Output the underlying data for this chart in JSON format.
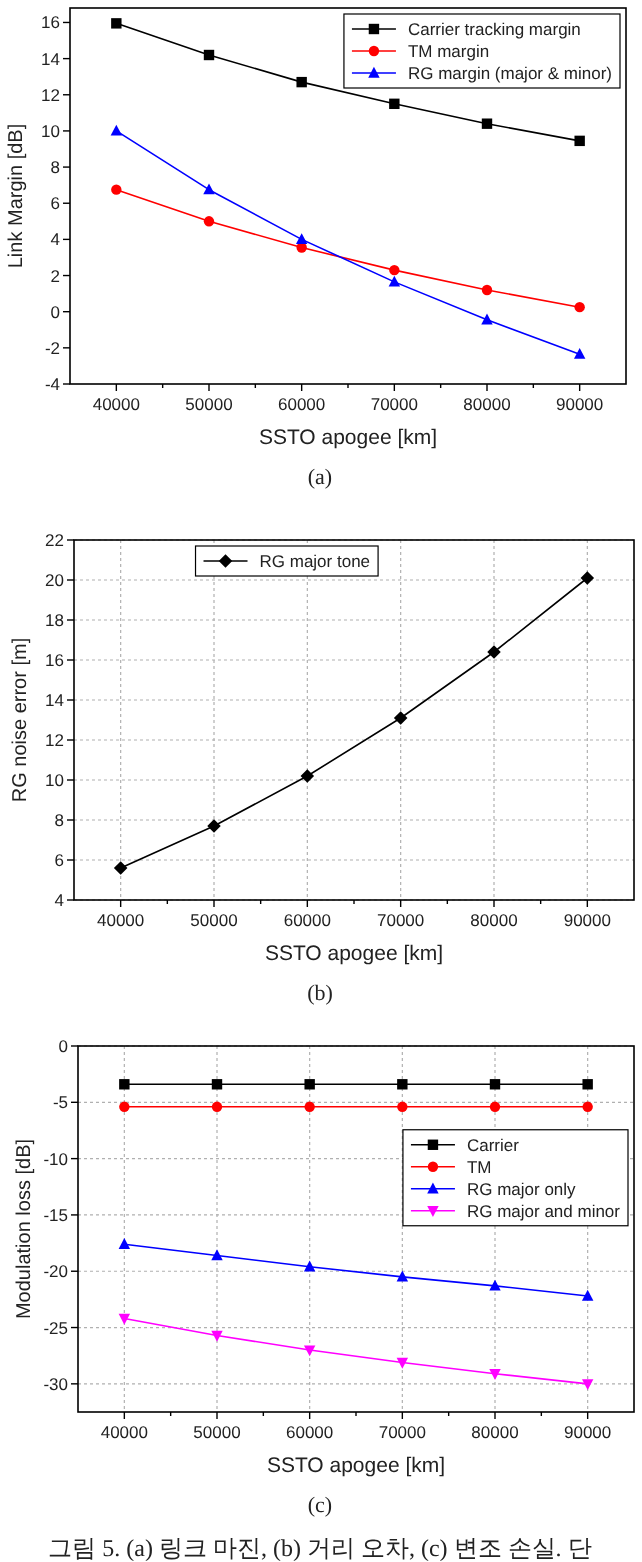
{
  "chart_data": [
    {
      "type": "line",
      "xlabel": "SSTO apogee [km]",
      "ylabel": "Link Margin [dB]",
      "annotations": [
        "(a)"
      ],
      "x": [
        40000,
        50000,
        60000,
        70000,
        80000,
        90000
      ],
      "xlim": [
        35000,
        95000
      ],
      "xticks": [
        40000,
        {
          "value": 45000,
          "label": null
        },
        50000,
        {
          "value": 55000,
          "label": null
        },
        60000,
        {
          "value": 65000,
          "label": null
        },
        70000,
        {
          "value": 75000,
          "label": null
        },
        80000,
        {
          "value": 85000,
          "label": null
        },
        90000
      ],
      "ylim": [
        -4,
        16.8
      ],
      "yticks": [
        -4,
        -2,
        0,
        2,
        4,
        6,
        8,
        10,
        12,
        14,
        16
      ],
      "grid": false,
      "legend": "top right",
      "line_style": "solid",
      "series": [
        {
          "name": "Carrier tracking margin",
          "color": "#000000",
          "marker": "square",
          "values": [
            15.95,
            14.2,
            12.7,
            11.5,
            10.4,
            9.45
          ]
        },
        {
          "name": "TM margin",
          "color": "#ff0000",
          "marker": "circle",
          "values": [
            6.75,
            5.0,
            3.55,
            2.3,
            1.2,
            0.25
          ]
        },
        {
          "name": "RG margin (major & minor)",
          "color": "#0000ff",
          "marker": "triangle",
          "values": [
            10.0,
            6.75,
            4.0,
            1.65,
            -0.45,
            -2.35
          ]
        }
      ]
    },
    {
      "type": "line",
      "xlabel": "SSTO apogee [km]",
      "ylabel": "RG noise error [m]",
      "annotations": [
        "(b)"
      ],
      "x": [
        40000,
        50000,
        60000,
        70000,
        80000,
        90000
      ],
      "xlim": [
        35000,
        95000
      ],
      "xticks": [
        40000,
        {
          "value": 45000,
          "label": null
        },
        50000,
        {
          "value": 55000,
          "label": null
        },
        60000,
        {
          "value": 65000,
          "label": null
        },
        70000,
        {
          "value": 75000,
          "label": null
        },
        80000,
        {
          "value": 85000,
          "label": null
        },
        90000
      ],
      "ylim": [
        4,
        22
      ],
      "yticks": [
        4,
        6,
        8,
        10,
        12,
        14,
        16,
        18,
        20,
        22
      ],
      "grid": true,
      "legend": "top",
      "line_style": "solid",
      "series": [
        {
          "name": "RG major tone",
          "color": "#000000",
          "marker": "diamond",
          "values": [
            5.6,
            7.7,
            10.2,
            13.1,
            16.4,
            20.1
          ]
        }
      ]
    },
    {
      "type": "line",
      "xlabel": "SSTO apogee [km]",
      "ylabel": "Modulation loss [dB]",
      "annotations": [
        "(c)",
        "그림 5. (a) 링크 마진, (b) 거리 오차, (c) 변조 손실. 단"
      ],
      "x": [
        40000,
        50000,
        60000,
        70000,
        80000,
        90000
      ],
      "xlim": [
        35000,
        95000
      ],
      "xticks": [
        40000,
        {
          "value": 45000,
          "label": null
        },
        50000,
        {
          "value": 55000,
          "label": null
        },
        60000,
        {
          "value": 65000,
          "label": null
        },
        70000,
        {
          "value": 75000,
          "label": null
        },
        80000,
        {
          "value": 85000,
          "label": null
        },
        90000
      ],
      "ylim": [
        -32.5,
        0
      ],
      "yticks": [
        -30,
        -25,
        -20,
        -15,
        -10,
        -5,
        0
      ],
      "grid": true,
      "legend": "right",
      "line_style": "solid",
      "series": [
        {
          "name": "Carrier",
          "color": "#000000",
          "marker": "square",
          "values": [
            -3.4,
            -3.4,
            -3.4,
            -3.4,
            -3.4,
            -3.4
          ]
        },
        {
          "name": "TM",
          "color": "#ff0000",
          "marker": "circle",
          "values": [
            -5.4,
            -5.4,
            -5.4,
            -5.4,
            -5.4,
            -5.4
          ]
        },
        {
          "name": "RG major only",
          "color": "#0000ff",
          "marker": "triangle",
          "values": [
            -17.6,
            -18.6,
            -19.6,
            -20.5,
            -21.3,
            -22.2
          ]
        },
        {
          "name": "RG major and minor",
          "color": "#ff00ff",
          "marker": "triangle_down",
          "values": [
            -24.2,
            -25.7,
            -27.0,
            -28.1,
            -29.1,
            -30.0
          ]
        }
      ]
    }
  ]
}
